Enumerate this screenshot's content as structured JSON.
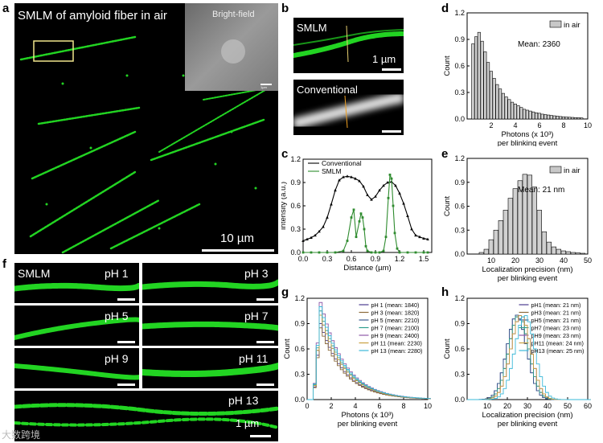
{
  "panels": {
    "a": {
      "letter": "a",
      "title": "SMLM of amyloid  fiber in air",
      "inset_label": "Bright-field",
      "inset_scale": "1µm",
      "scale": "10 µm"
    },
    "b": {
      "letter": "b",
      "top_label": "SMLM",
      "top_scale": "1 µm",
      "bottom_label": "Conventional"
    },
    "f": {
      "letter": "f",
      "smlm_label": "SMLM",
      "scale": "1 µm",
      "ph_labels": [
        "pH 1",
        "pH 3",
        "pH 5",
        "pH 7",
        "pH 9",
        "pH 11",
        "pH 13"
      ]
    },
    "c": {
      "letter": "c"
    },
    "d": {
      "letter": "d"
    },
    "e": {
      "letter": "e"
    },
    "g": {
      "letter": "g"
    },
    "h": {
      "letter": "h"
    }
  },
  "watermark": "大数跨境",
  "chart_data": [
    {
      "id": "c",
      "type": "line",
      "xlabel": "Distance (µm)",
      "ylabel": "Intensity (a.u.)",
      "xlim": [
        0,
        1.6
      ],
      "ylim": [
        0,
        1.2
      ],
      "xticks": [
        "0.0",
        "0.3",
        "0.6",
        "0.9",
        "1.2",
        "1.5"
      ],
      "yticks": [
        "0.0",
        "0.3",
        "0.6",
        "0.9",
        "1.2"
      ],
      "legend": "top-left",
      "series": [
        {
          "name": "Conventional",
          "color": "#000000",
          "x": [
            0,
            0.05,
            0.1,
            0.15,
            0.2,
            0.25,
            0.3,
            0.35,
            0.4,
            0.45,
            0.5,
            0.55,
            0.6,
            0.65,
            0.7,
            0.75,
            0.8,
            0.85,
            0.9,
            0.95,
            1.0,
            1.05,
            1.1,
            1.15,
            1.2,
            1.25,
            1.3,
            1.35,
            1.4,
            1.45,
            1.5,
            1.55
          ],
          "y": [
            0.15,
            0.17,
            0.19,
            0.22,
            0.27,
            0.33,
            0.45,
            0.62,
            0.8,
            0.93,
            0.97,
            0.98,
            0.97,
            0.95,
            0.92,
            0.85,
            0.74,
            0.68,
            0.72,
            0.8,
            0.86,
            0.9,
            0.91,
            0.86,
            0.76,
            0.63,
            0.47,
            0.3,
            0.22,
            0.2,
            0.18,
            0.17
          ]
        },
        {
          "name": "SMLM",
          "color": "#2e8b2e",
          "x": [
            0,
            0.1,
            0.2,
            0.3,
            0.4,
            0.5,
            0.55,
            0.6,
            0.63,
            0.66,
            0.7,
            0.72,
            0.74,
            0.76,
            0.78,
            0.8,
            0.85,
            0.9,
            0.95,
            1.0,
            1.03,
            1.06,
            1.08,
            1.1,
            1.12,
            1.14,
            1.17,
            1.2,
            1.3,
            1.4,
            1.5,
            1.55
          ],
          "y": [
            0,
            0,
            0,
            0,
            0,
            0.02,
            0.15,
            0.45,
            0.55,
            0.2,
            0.4,
            0.5,
            0.45,
            0.3,
            0.08,
            0.02,
            0,
            0,
            0,
            0.02,
            0.2,
            0.7,
            1.0,
            0.95,
            0.6,
            0.25,
            0.05,
            0,
            0,
            0,
            0,
            0
          ]
        }
      ]
    },
    {
      "id": "d",
      "type": "bar",
      "xlabel": "Photons (x 10³)",
      "xlabel2": "per blinking event",
      "ylabel": "Count",
      "xlim": [
        0,
        10
      ],
      "ylim": [
        0,
        1.2
      ],
      "xticks": [
        "2",
        "4",
        "6",
        "8",
        "10"
      ],
      "yticks": [
        "0.0",
        "0.3",
        "0.6",
        "0.9",
        "1.2"
      ],
      "legend": "top-right",
      "legend_label": "in air",
      "annotation": "Mean: 2360",
      "x": [
        0.5,
        0.75,
        1.0,
        1.25,
        1.5,
        1.75,
        2.0,
        2.25,
        2.5,
        2.75,
        3.0,
        3.25,
        3.5,
        3.75,
        4.0,
        4.25,
        4.5,
        4.75,
        5.0,
        5.25,
        5.5,
        5.75,
        6.0,
        6.25,
        6.5,
        6.75,
        7.0,
        7.25,
        7.5,
        7.75,
        8.0,
        8.25,
        8.5,
        8.75,
        9.0,
        9.25,
        9.5
      ],
      "values": [
        0.85,
        0.93,
        0.98,
        0.88,
        0.76,
        0.64,
        0.54,
        0.46,
        0.39,
        0.34,
        0.29,
        0.25,
        0.22,
        0.19,
        0.17,
        0.15,
        0.13,
        0.11,
        0.1,
        0.09,
        0.08,
        0.07,
        0.065,
        0.055,
        0.05,
        0.045,
        0.04,
        0.036,
        0.032,
        0.028,
        0.025,
        0.022,
        0.02,
        0.018,
        0.016,
        0.014,
        0.012
      ]
    },
    {
      "id": "e",
      "type": "bar",
      "xlabel": "Localization precision (nm)",
      "xlabel2": "per blinking event",
      "ylabel": "Count",
      "xlim": [
        0,
        50
      ],
      "ylim": [
        0,
        1.2
      ],
      "xticks": [
        "10",
        "20",
        "30",
        "40",
        "50"
      ],
      "yticks": [
        "0.0",
        "0.3",
        "0.6",
        "0.9",
        "1.2"
      ],
      "legend": "top-right",
      "legend_label": "in air",
      "annotation": "Mean: 21 nm",
      "x": [
        6,
        8,
        10,
        12,
        14,
        16,
        18,
        20,
        22,
        24,
        26,
        28,
        30,
        32,
        34,
        36,
        38,
        40,
        42,
        44,
        46,
        48
      ],
      "values": [
        0.02,
        0.06,
        0.18,
        0.3,
        0.42,
        0.55,
        0.7,
        0.82,
        0.92,
        1.0,
        0.99,
        0.84,
        0.55,
        0.28,
        0.15,
        0.09,
        0.06,
        0.04,
        0.03,
        0.02,
        0.015,
        0.01
      ]
    },
    {
      "id": "g",
      "type": "line",
      "xlabel": "Photons (x 10³)",
      "xlabel2": "per blinking event",
      "ylabel": "Count",
      "xlim": [
        0,
        10
      ],
      "ylim": [
        0,
        1.2
      ],
      "xticks": [
        "0",
        "2",
        "4",
        "6",
        "8",
        "10"
      ],
      "yticks": [
        "0.0",
        "0.3",
        "0.6",
        "0.9",
        "1.2"
      ],
      "legend": "top-right",
      "series": [
        {
          "name": "pH 1 (mean: 1840)",
          "color": "#4b3b8f",
          "peak": 0.9
        },
        {
          "name": "pH 3 (mean: 1820)",
          "color": "#8b6b3b",
          "peak": 0.85
        },
        {
          "name": "pH 5 (mean: 2210)",
          "color": "#3b5b8f",
          "peak": 1.0
        },
        {
          "name": "pH 7 (mean: 2100)",
          "color": "#2e9e8e",
          "peak": 1.05
        },
        {
          "name": "pH 9 (mean: 2400)",
          "color": "#8e5aa8",
          "peak": 1.15
        },
        {
          "name": "pH 11 (mean: 2230)",
          "color": "#c8a040",
          "peak": 1.0
        },
        {
          "name": "pH 13 (mean: 2280)",
          "color": "#3ab8d8",
          "peak": 1.1
        }
      ]
    },
    {
      "id": "h",
      "type": "line",
      "xlabel": "Localization precision (nm)",
      "xlabel2": "per blinking event",
      "ylabel": "Count",
      "xlim": [
        0,
        60
      ],
      "ylim": [
        0,
        1.2
      ],
      "xticks": [
        "10",
        "20",
        "30",
        "40",
        "50",
        "60"
      ],
      "yticks": [
        "0.0",
        "0.3",
        "0.6",
        "0.9",
        "1.2"
      ],
      "legend": "top-right",
      "series": [
        {
          "name": "pH1 (mean: 21 nm)",
          "color": "#4b3b8f",
          "center": 24
        },
        {
          "name": "pH3 (mean: 21 nm)",
          "color": "#8b6b3b",
          "center": 25
        },
        {
          "name": "pH5 (mean: 21 nm)",
          "color": "#3b5b8f",
          "center": 24
        },
        {
          "name": "pH7 (mean: 23 nm)",
          "color": "#2e9e8e",
          "center": 25
        },
        {
          "name": "pH9 (mean: 23 nm)",
          "color": "#8e5aa8",
          "center": 26
        },
        {
          "name": "pH11 (mean: 24 nm)",
          "color": "#c8a040",
          "center": 26
        },
        {
          "name": "pH13 (mean: 25 nm)",
          "color": "#3ab8d8",
          "center": 28
        }
      ]
    }
  ]
}
